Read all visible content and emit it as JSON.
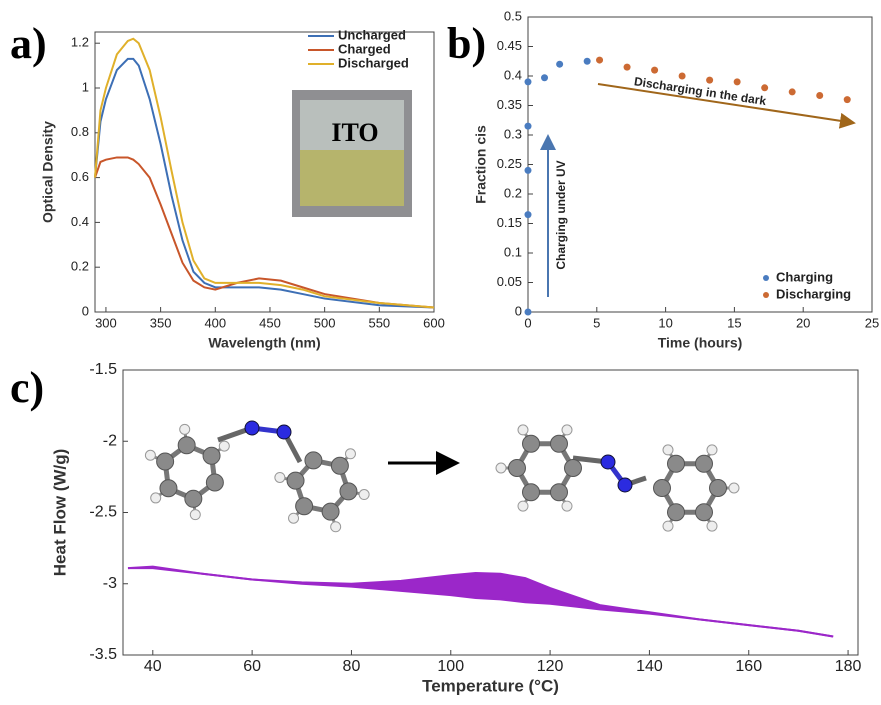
{
  "chart_data": [
    {
      "type": "line",
      "panel_label": "a)",
      "xlabel": "Wavelength (nm)",
      "ylabel": "Optical Density",
      "inset_label": "ITO",
      "xlim": [
        290,
        600
      ],
      "ylim": [
        0,
        1.25
      ],
      "xticks": [
        300,
        350,
        400,
        450,
        500,
        550,
        600
      ],
      "yticks": [
        0,
        0.2,
        0.4,
        0.6,
        0.8,
        1,
        1.2
      ],
      "legend": "upper right",
      "x": [
        290,
        295,
        300,
        310,
        320,
        325,
        330,
        340,
        350,
        360,
        370,
        380,
        390,
        400,
        420,
        440,
        460,
        480,
        500,
        550,
        600
      ],
      "series": [
        {
          "name": "Uncharged",
          "color": "#3d6fb5",
          "values": [
            0.6,
            0.85,
            0.95,
            1.08,
            1.13,
            1.13,
            1.1,
            0.95,
            0.75,
            0.52,
            0.32,
            0.18,
            0.13,
            0.11,
            0.11,
            0.11,
            0.1,
            0.08,
            0.06,
            0.03,
            0.02
          ]
        },
        {
          "name": "Charged",
          "color": "#c8562a",
          "values": [
            0.6,
            0.67,
            0.68,
            0.69,
            0.69,
            0.68,
            0.66,
            0.6,
            0.48,
            0.35,
            0.22,
            0.14,
            0.11,
            0.1,
            0.13,
            0.15,
            0.14,
            0.11,
            0.08,
            0.04,
            0.02
          ]
        },
        {
          "name": "Discharged",
          "color": "#e0b02a",
          "values": [
            0.6,
            0.9,
            1.0,
            1.15,
            1.21,
            1.22,
            1.2,
            1.08,
            0.87,
            0.63,
            0.4,
            0.23,
            0.15,
            0.13,
            0.13,
            0.13,
            0.12,
            0.1,
            0.07,
            0.04,
            0.02
          ]
        }
      ]
    },
    {
      "type": "scatter",
      "panel_label": "b)",
      "xlabel": "Time (hours)",
      "ylabel": "Fraction cis",
      "xlim": [
        0,
        25
      ],
      "ylim": [
        0,
        0.5
      ],
      "xticks": [
        0,
        5,
        10,
        15,
        20,
        25
      ],
      "yticks": [
        0,
        0.05,
        0.1,
        0.15,
        0.2,
        0.25,
        0.3,
        0.35,
        0.4,
        0.45,
        0.5
      ],
      "legend": "lower right",
      "annotations": [
        "Charging under UV",
        "Discharging in the dark"
      ],
      "series": [
        {
          "name": "Charging",
          "color": "#4a7cc0",
          "x": [
            0,
            0,
            0,
            0,
            0,
            1.2,
            2.3,
            4.3
          ],
          "values": [
            0,
            0.165,
            0.24,
            0.315,
            0.39,
            0.397,
            0.42,
            0.425
          ]
        },
        {
          "name": "Discharging",
          "color": "#cc6a33",
          "x": [
            5.2,
            7.2,
            9.2,
            11.2,
            13.2,
            15.2,
            17.2,
            19.2,
            21.2,
            23.2
          ],
          "values": [
            0.427,
            0.415,
            0.41,
            0.4,
            0.393,
            0.39,
            0.38,
            0.373,
            0.367,
            0.36
          ]
        }
      ]
    },
    {
      "type": "area",
      "panel_label": "c)",
      "xlabel": "Temperature (°C)",
      "ylabel": "Heat Flow (W/g)",
      "xlim": [
        34,
        182
      ],
      "ylim": [
        -3.5,
        -1.5
      ],
      "xticks": [
        40,
        60,
        80,
        100,
        120,
        140,
        160,
        180
      ],
      "yticks": [
        -1.5,
        -2,
        -2.5,
        -3,
        -3.5
      ],
      "color": "#9b27c9",
      "x": [
        35,
        40,
        50,
        60,
        70,
        80,
        90,
        100,
        105,
        110,
        115,
        120,
        125,
        130,
        140,
        150,
        160,
        170,
        177
      ],
      "upper": [
        -2.89,
        -2.88,
        -2.93,
        -2.97,
        -2.99,
        -3.0,
        -2.98,
        -2.94,
        -2.925,
        -2.93,
        -2.96,
        -3.03,
        -3.09,
        -3.15,
        -3.2,
        -3.25,
        -3.29,
        -3.33,
        -3.37
      ],
      "lower": [
        -2.89,
        -2.89,
        -2.93,
        -2.97,
        -3.0,
        -3.02,
        -3.05,
        -3.08,
        -3.1,
        -3.11,
        -3.13,
        -3.14,
        -3.16,
        -3.18,
        -3.21,
        -3.25,
        -3.29,
        -3.33,
        -3.37
      ]
    }
  ]
}
